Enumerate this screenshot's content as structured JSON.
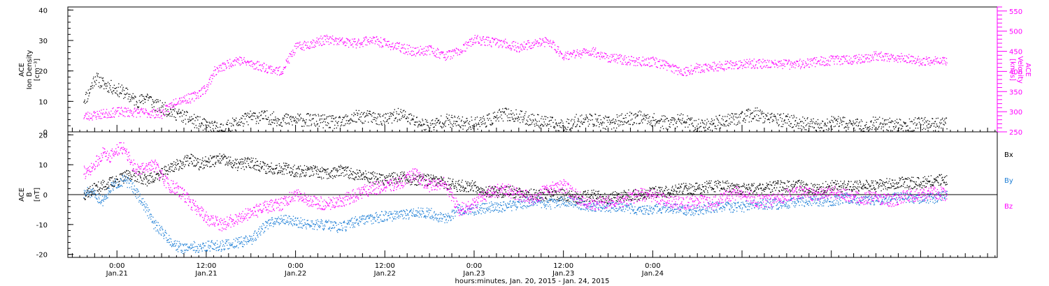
{
  "chart_data": [
    {
      "type": "scatter",
      "panel": "top",
      "ylabel_left": [
        "ACE",
        "Ion Density",
        "[cm⁻³]"
      ],
      "ylabel_right": [
        "ACE",
        "Velocity",
        "[km/s]"
      ],
      "yticks_left": [
        "0",
        "10",
        "20",
        "30",
        "40"
      ],
      "ylim_left": [
        0,
        41
      ],
      "yticks_right": [
        "250",
        "300",
        "350",
        "400",
        "450",
        "500",
        "550"
      ],
      "ylim_right": [
        250,
        560
      ],
      "x_unit": "hours since Jan. 20, 2015 00:00",
      "series": [
        {
          "name": "",
          "axis": "left",
          "color": "#000000",
          "x": [
            19.5,
            20,
            21,
            22,
            23,
            24,
            25,
            26,
            27,
            28,
            29,
            30,
            31,
            32,
            33,
            34,
            35,
            36,
            37,
            38,
            39,
            40,
            42,
            44,
            46,
            48,
            50,
            52,
            54,
            56,
            58,
            60,
            62,
            64,
            66,
            68,
            70,
            72,
            74,
            76,
            78,
            80,
            82,
            84,
            86,
            88,
            90,
            92,
            94,
            96,
            98,
            100,
            102,
            104,
            106,
            108,
            110,
            112,
            114,
            116,
            118,
            120,
            122,
            124,
            126,
            128,
            130,
            132,
            134,
            135.5
          ],
          "values": [
            11,
            12,
            18,
            16,
            15,
            14,
            13,
            11,
            10,
            12,
            9,
            8,
            7,
            6,
            5,
            4,
            3,
            2,
            1.5,
            1,
            2,
            3,
            5,
            5,
            4,
            4,
            4,
            3.5,
            3,
            5,
            5,
            4,
            6,
            3.5,
            2,
            4,
            3,
            3,
            4,
            6,
            5,
            4,
            3,
            2,
            4,
            4,
            3,
            4,
            5,
            4,
            3,
            4,
            2,
            3,
            4,
            5,
            6,
            4,
            4,
            3,
            2,
            3,
            3,
            2,
            3,
            2.5,
            2,
            3,
            2.5,
            2.5
          ]
        },
        {
          "name": "",
          "axis": "right",
          "color": "#ff00ff",
          "x": [
            19.5,
            20,
            22,
            24,
            26,
            28,
            30,
            32,
            34,
            36,
            37,
            38,
            39,
            40,
            42,
            44,
            46,
            48,
            50,
            52,
            54,
            56,
            58,
            60,
            62,
            64,
            66,
            68,
            70,
            72,
            74,
            76,
            78,
            80,
            82,
            84,
            86,
            88,
            90,
            92,
            94,
            96,
            98,
            100,
            102,
            104,
            106,
            108,
            110,
            112,
            114,
            116,
            118,
            120,
            122,
            124,
            126,
            128,
            130,
            132,
            134,
            135.5
          ],
          "values": [
            290,
            290,
            295,
            300,
            300,
            298,
            296,
            330,
            335,
            360,
            400,
            410,
            420,
            430,
            420,
            410,
            400,
            460,
            470,
            480,
            475,
            470,
            480,
            470,
            460,
            450,
            455,
            440,
            450,
            480,
            475,
            470,
            460,
            470,
            475,
            440,
            445,
            450,
            435,
            430,
            425,
            425,
            415,
            400,
            410,
            412,
            415,
            420,
            420,
            420,
            418,
            420,
            425,
            428,
            430,
            432,
            440,
            432,
            435,
            425,
            430,
            425
          ]
        }
      ]
    },
    {
      "type": "scatter",
      "panel": "bottom",
      "ylabel_left": [
        "ACE",
        "B",
        "[nT]"
      ],
      "yticks_left": [
        "-20",
        "-10",
        "0",
        "10",
        "20"
      ],
      "ylim_left": [
        -21,
        21
      ],
      "x_unit": "hours since Jan. 20, 2015 00:00",
      "series": [
        {
          "name": "Bx",
          "color": "#000000",
          "x": [
            19.5,
            20,
            21,
            22,
            23,
            24,
            25,
            26,
            27,
            28,
            29,
            30,
            31,
            32,
            33,
            34,
            35,
            36,
            38,
            40,
            42,
            44,
            46,
            48,
            50,
            52,
            54,
            56,
            58,
            60,
            62,
            64,
            66,
            68,
            70,
            72,
            74,
            76,
            78,
            80,
            82,
            84,
            86,
            88,
            90,
            92,
            94,
            96,
            98,
            100,
            102,
            104,
            106,
            108,
            110,
            112,
            114,
            116,
            118,
            120,
            122,
            124,
            126,
            128,
            130,
            132,
            134,
            135.5
          ],
          "values": [
            0,
            1,
            2,
            3,
            4,
            5,
            6,
            7,
            6,
            5,
            6,
            7,
            9,
            10,
            11,
            12,
            10,
            11,
            12,
            10,
            11,
            9,
            9,
            8,
            8,
            7,
            8,
            7,
            6,
            5,
            6,
            5,
            5,
            4,
            3,
            3,
            1,
            1,
            1,
            0,
            0,
            0,
            -1,
            0,
            -1,
            0,
            0,
            1,
            1,
            2,
            2,
            3,
            3,
            2,
            2,
            3,
            3,
            3,
            2,
            3,
            3,
            3,
            3,
            4,
            4,
            4,
            5,
            5
          ]
        },
        {
          "name": "By",
          "color": "#1e7fd6",
          "x": [
            19.5,
            20,
            21,
            22,
            23,
            24,
            25,
            26,
            27,
            28,
            29,
            30,
            31,
            32,
            33,
            34,
            35,
            36,
            38,
            40,
            42,
            44,
            46,
            48,
            50,
            52,
            54,
            56,
            58,
            60,
            62,
            64,
            66,
            68,
            70,
            72,
            74,
            76,
            78,
            80,
            82,
            84,
            86,
            88,
            90,
            92,
            94,
            96,
            98,
            100,
            102,
            104,
            106,
            108,
            110,
            112,
            114,
            116,
            118,
            120,
            122,
            124,
            126,
            128,
            130,
            132,
            134,
            135.5
          ],
          "values": [
            0,
            1,
            0,
            -2,
            2,
            4,
            5,
            3,
            -1,
            -5,
            -10,
            -12,
            -15,
            -17,
            -18,
            -17,
            -18,
            -17,
            -17,
            -16,
            -15,
            -10,
            -8,
            -9,
            -10,
            -10,
            -11,
            -9,
            -8,
            -7,
            -7,
            -6,
            -6,
            -8,
            -5,
            -5,
            -4,
            -4,
            -3,
            -2,
            -3,
            -2,
            -3,
            -4,
            -4,
            -4,
            -5,
            -5,
            -4,
            -5,
            -5,
            -4,
            -4,
            -4,
            -3,
            -3,
            -3,
            -2,
            -2,
            -2,
            -1,
            -2,
            -2,
            -1,
            -1,
            -1,
            -1,
            0
          ]
        },
        {
          "name": "Bz",
          "color": "#ff00ff",
          "x": [
            19.5,
            20,
            21,
            22,
            23,
            24,
            25,
            26,
            27,
            28,
            29,
            30,
            31,
            32,
            33,
            34,
            35,
            36,
            38,
            40,
            42,
            44,
            46,
            48,
            50,
            52,
            54,
            56,
            58,
            60,
            62,
            64,
            66,
            68,
            70,
            72,
            74,
            76,
            78,
            80,
            82,
            84,
            86,
            88,
            90,
            92,
            94,
            96,
            98,
            100,
            102,
            104,
            106,
            108,
            110,
            112,
            114,
            116,
            118,
            120,
            122,
            124,
            126,
            128,
            130,
            132,
            134,
            135.5
          ],
          "values": [
            8,
            7,
            10,
            14,
            13,
            15,
            16,
            10,
            8,
            10,
            10,
            6,
            3,
            2,
            0,
            -3,
            -5,
            -8,
            -10,
            -8,
            -6,
            -4,
            -3,
            0,
            -2,
            -3,
            -2,
            0,
            2,
            3,
            4,
            7,
            3,
            4,
            -5,
            -3,
            1,
            2,
            0,
            -1,
            2,
            3,
            -1,
            -3,
            -2,
            -2,
            0,
            0,
            -2,
            -3,
            -2,
            -3,
            0,
            1,
            -2,
            -2,
            0,
            1,
            0,
            1,
            0,
            -1,
            -1,
            -2,
            0,
            0,
            1,
            0
          ]
        }
      ]
    }
  ],
  "x_axis": {
    "range": [
      17.4,
      142.3
    ],
    "ticks": [
      {
        "x": 24,
        "time": "0:00",
        "date": "Jan.21"
      },
      {
        "x": 36,
        "time": "12:00",
        "date": "Jan.21"
      },
      {
        "x": 48,
        "time": "0:00",
        "date": "Jan.22"
      },
      {
        "x": 60,
        "time": "12:00",
        "date": "Jan.22"
      },
      {
        "x": 72,
        "time": "0:00",
        "date": "Jan.23"
      },
      {
        "x": 84,
        "time": "12:00",
        "date": "Jan.23"
      },
      {
        "x": 96,
        "time": "0:00",
        "date": "Jan.24"
      }
    ],
    "xlabel": "hours:minutes, Jan. 20, 2015 - Jan. 24, 2015"
  },
  "legend": [
    "Bx",
    "By",
    "Bz"
  ],
  "legend_placement": "right of bottom panel",
  "colors": {
    "black": "#000000",
    "magenta": "#ff00ff",
    "blue": "#1e7fd6"
  }
}
